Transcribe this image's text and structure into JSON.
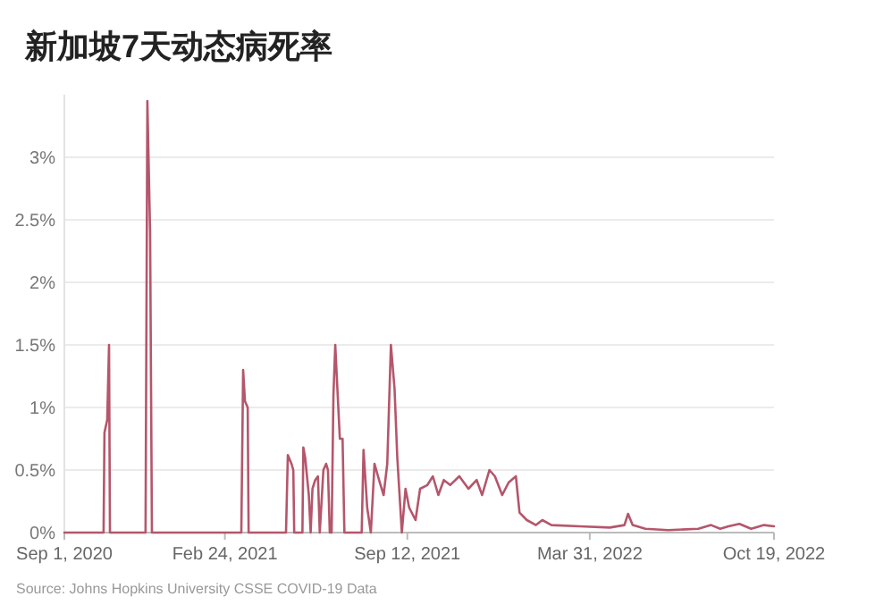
{
  "chart_data": {
    "type": "line",
    "title": "新加坡7天动态病死率",
    "annotations": [
      "Source: Johns Hopkins University CSSE COVID-19 Data"
    ],
    "x": [
      "2020-09-01",
      "2020-10-14",
      "2020-10-15",
      "2020-10-18",
      "2020-10-20",
      "2020-10-21",
      "2020-11-29",
      "2020-12-01",
      "2020-12-04",
      "2020-12-06",
      "2021-03-14",
      "2021-03-16",
      "2021-03-18",
      "2021-03-21",
      "2021-03-22",
      "2021-05-02",
      "2021-05-04",
      "2021-05-08",
      "2021-05-10",
      "2021-05-11",
      "2021-05-20",
      "2021-05-21",
      "2021-05-23",
      "2021-05-27",
      "2021-05-29",
      "2021-05-31",
      "2021-06-03",
      "2021-06-06",
      "2021-06-08",
      "2021-06-12",
      "2021-06-15",
      "2021-06-17",
      "2021-06-19",
      "2021-06-21",
      "2021-06-23",
      "2021-06-25",
      "2021-06-27",
      "2021-06-30",
      "2021-07-03",
      "2021-07-05",
      "2021-07-24",
      "2021-07-26",
      "2021-07-30",
      "2021-08-03",
      "2021-08-07",
      "2021-08-12",
      "2021-08-17",
      "2021-08-21",
      "2021-08-25",
      "2021-08-29",
      "2021-09-01",
      "2021-09-06",
      "2021-09-10",
      "2021-09-14",
      "2021-09-21",
      "2021-09-26",
      "2021-10-04",
      "2021-10-10",
      "2021-10-16",
      "2021-10-22",
      "2021-10-29",
      "2021-11-08",
      "2021-11-18",
      "2021-11-27",
      "2021-12-03",
      "2021-12-11",
      "2021-12-17",
      "2021-12-25",
      "2022-01-01",
      "2022-01-09",
      "2022-01-13",
      "2022-01-21",
      "2022-01-31",
      "2022-02-07",
      "2022-02-17",
      "2022-03-20",
      "2022-04-22",
      "2022-05-08",
      "2022-05-12",
      "2022-05-17",
      "2022-05-31",
      "2022-06-25",
      "2022-07-28",
      "2022-08-11",
      "2022-08-21",
      "2022-08-30",
      "2022-09-11",
      "2022-09-24",
      "2022-10-08",
      "2022-10-19"
    ],
    "series": [
      {
        "color": "#b5566b",
        "values": [
          0,
          0,
          0.8,
          0.9,
          1.5,
          0,
          0,
          3.45,
          2.4,
          0,
          0,
          1.3,
          1.05,
          1.0,
          0,
          0,
          0.62,
          0.55,
          0.5,
          0,
          0,
          0.68,
          0.6,
          0.3,
          0,
          0.35,
          0.42,
          0.45,
          0,
          0.5,
          0.55,
          0.5,
          0,
          0,
          1.1,
          1.5,
          1.2,
          0.75,
          0.75,
          0,
          0,
          0.66,
          0.2,
          0,
          0.55,
          0.42,
          0.3,
          0.55,
          1.5,
          1.15,
          0.6,
          0,
          0.35,
          0.2,
          0.1,
          0.35,
          0.38,
          0.45,
          0.3,
          0.42,
          0.38,
          0.45,
          0.35,
          0.42,
          0.3,
          0.5,
          0.45,
          0.3,
          0.4,
          0.45,
          0.16,
          0.1,
          0.06,
          0.1,
          0.06,
          0.05,
          0.04,
          0.06,
          0.15,
          0.06,
          0.03,
          0.02,
          0.03,
          0.06,
          0.03,
          0.05,
          0.07,
          0.03,
          0.06,
          0.05
        ]
      }
    ],
    "xlim": [
      "2020-09-01",
      "2022-10-19"
    ],
    "xticks": [
      {
        "value": "2020-09-01",
        "label": "Sep 1, 2020"
      },
      {
        "value": "2021-02-24",
        "label": "Feb 24, 2021"
      },
      {
        "value": "2021-09-12",
        "label": "Sep 12, 2021"
      },
      {
        "value": "2022-03-31",
        "label": "Mar 31, 2022"
      },
      {
        "value": "2022-10-19",
        "label": "Oct 19, 2022"
      }
    ],
    "ylim": [
      0,
      3.5
    ],
    "yticks": [
      {
        "value": 0,
        "label": "0%"
      },
      {
        "value": 0.5,
        "label": "0.5%"
      },
      {
        "value": 1,
        "label": "1%"
      },
      {
        "value": 1.5,
        "label": "1.5%"
      },
      {
        "value": 2,
        "label": "2%"
      },
      {
        "value": 2.5,
        "label": "2.5%"
      },
      {
        "value": 3,
        "label": "3%"
      }
    ],
    "grid": "y",
    "marker": "none",
    "line_style": "solid"
  }
}
